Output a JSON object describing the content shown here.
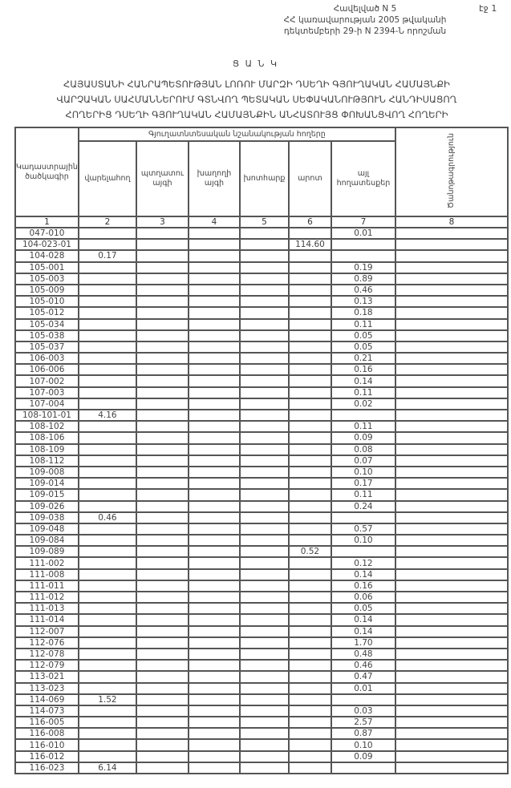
{
  "page_label": "էջ 1",
  "annex": {
    "line1": "Հավելված N 5",
    "line2": "ՀՀ կառավարության 2005 թվականի",
    "line3": "դեկտեմբերի 29-ի N 2394-Ն որոշման"
  },
  "title": "Ց Ա Ն Կ",
  "subtitle": {
    "line1": "ՀԱՅԱՍՏԱՆԻ ՀԱՆՐԱՊԵՏՈՒԹՅԱՆ ԼՈՌՈՒ ՄԱՐԶԻ ԴՍԵՂԻ ԳՅՈՒՂԱԿԱՆ ՀԱՄԱՅՆՔԻ",
    "line2": "ՎԱՐՉԱԿԱՆ ՍԱՀՄԱՆՆԵՐՈՒՄ ԳՏՆՎՈՂ ՊԵՏԱԿԱՆ ՍԵՓԱԿԱՆՈՒԹՅՈՒՆ ՀԱՆԴԻՍԱՑՈՂ",
    "line3": "ՀՈՂԵՐԻՑ ԴՍԵՂԻ ԳՅՈՒՂԱԿԱՆ ՀԱՄԱՅՆՔԻՆ ԱՆՀԱՏՈՒՅՑ ՓՈԽԱՆՑՎՈՂ ՀՈՂԵՐԻ"
  },
  "table": {
    "group_header": "Գյուղատնտեսական նշանակության հողերը",
    "columns": [
      "Կադաստրային ծածկագիր",
      "վարելահող",
      "պտղատու այգի",
      "խաղողի այգի",
      "խոտհարք",
      "արոտ",
      "այլ հողատեսքեր",
      "Ծանոթագրություն"
    ],
    "column_numbers": [
      "1",
      "2",
      "3",
      "4",
      "5",
      "6",
      "7",
      "8"
    ],
    "rows": [
      [
        "047-010",
        "",
        "",
        "",
        "",
        "",
        "0.01",
        ""
      ],
      [
        "104-023-01",
        "",
        "",
        "",
        "",
        "114.60",
        "",
        ""
      ],
      [
        "104-028",
        "0.17",
        "",
        "",
        "",
        "",
        "",
        ""
      ],
      [
        "105-001",
        "",
        "",
        "",
        "",
        "",
        "0.19",
        ""
      ],
      [
        "105-003",
        "",
        "",
        "",
        "",
        "",
        "0.89",
        ""
      ],
      [
        "105-009",
        "",
        "",
        "",
        "",
        "",
        "0.46",
        ""
      ],
      [
        "105-010",
        "",
        "",
        "",
        "",
        "",
        "0.13",
        ""
      ],
      [
        "105-012",
        "",
        "",
        "",
        "",
        "",
        "0.18",
        ""
      ],
      [
        "105-034",
        "",
        "",
        "",
        "",
        "",
        "0.11",
        ""
      ],
      [
        "105-038",
        "",
        "",
        "",
        "",
        "",
        "0.05",
        ""
      ],
      [
        "105-037",
        "",
        "",
        "",
        "",
        "",
        "0.05",
        ""
      ],
      [
        "106-003",
        "",
        "",
        "",
        "",
        "",
        "0.21",
        ""
      ],
      [
        "106-006",
        "",
        "",
        "",
        "",
        "",
        "0.16",
        ""
      ],
      [
        "107-002",
        "",
        "",
        "",
        "",
        "",
        "0.14",
        ""
      ],
      [
        "107-003",
        "",
        "",
        "",
        "",
        "",
        "0.11",
        ""
      ],
      [
        "107-004",
        "",
        "",
        "",
        "",
        "",
        "0.02",
        ""
      ],
      [
        "108-101-01",
        "4.16",
        "",
        "",
        "",
        "",
        "",
        ""
      ],
      [
        "108-102",
        "",
        "",
        "",
        "",
        "",
        "0.11",
        ""
      ],
      [
        "108-106",
        "",
        "",
        "",
        "",
        "",
        "0.09",
        ""
      ],
      [
        "108-109",
        "",
        "",
        "",
        "",
        "",
        "0.08",
        ""
      ],
      [
        "108-112",
        "",
        "",
        "",
        "",
        "",
        "0.07",
        ""
      ],
      [
        "109-008",
        "",
        "",
        "",
        "",
        "",
        "0.10",
        ""
      ],
      [
        "109-014",
        "",
        "",
        "",
        "",
        "",
        "0.17",
        ""
      ],
      [
        "109-015",
        "",
        "",
        "",
        "",
        "",
        "0.11",
        ""
      ],
      [
        "109-026",
        "",
        "",
        "",
        "",
        "",
        "0.24",
        ""
      ],
      [
        "109-038",
        "0.46",
        "",
        "",
        "",
        "",
        "",
        ""
      ],
      [
        "109-048",
        "",
        "",
        "",
        "",
        "",
        "0.57",
        ""
      ],
      [
        "109-084",
        "",
        "",
        "",
        "",
        "",
        "0.10",
        ""
      ],
      [
        "109-089",
        "",
        "",
        "",
        "",
        "0.52",
        "",
        ""
      ],
      [
        "111-002",
        "",
        "",
        "",
        "",
        "",
        "0.12",
        ""
      ],
      [
        "111-008",
        "",
        "",
        "",
        "",
        "",
        "0.14",
        ""
      ],
      [
        "111-011",
        "",
        "",
        "",
        "",
        "",
        "0.16",
        ""
      ],
      [
        "111-012",
        "",
        "",
        "",
        "",
        "",
        "0.06",
        ""
      ],
      [
        "111-013",
        "",
        "",
        "",
        "",
        "",
        "0.05",
        ""
      ],
      [
        "111-014",
        "",
        "",
        "",
        "",
        "",
        "0.14",
        ""
      ],
      [
        "112-007",
        "",
        "",
        "",
        "",
        "",
        "0.14",
        ""
      ],
      [
        "112-076",
        "",
        "",
        "",
        "",
        "",
        "1.70",
        ""
      ],
      [
        "112-078",
        "",
        "",
        "",
        "",
        "",
        "0.48",
        ""
      ],
      [
        "112-079",
        "",
        "",
        "",
        "",
        "",
        "0.46",
        ""
      ],
      [
        "113-021",
        "",
        "",
        "",
        "",
        "",
        "0.47",
        ""
      ],
      [
        "113-023",
        "",
        "",
        "",
        "",
        "",
        "0.01",
        ""
      ],
      [
        "114-069",
        "1.52",
        "",
        "",
        "",
        "",
        "",
        ""
      ],
      [
        "114-073",
        "",
        "",
        "",
        "",
        "",
        "0.03",
        ""
      ],
      [
        "116-005",
        "",
        "",
        "",
        "",
        "",
        "2.57",
        ""
      ],
      [
        "116-008",
        "",
        "",
        "",
        "",
        "",
        "0.87",
        ""
      ],
      [
        "116-010",
        "",
        "",
        "",
        "",
        "",
        "0.10",
        ""
      ],
      [
        "116-012",
        "",
        "",
        "",
        "",
        "",
        "0.09",
        ""
      ],
      [
        "116-023",
        "6.14",
        "",
        "",
        "",
        "",
        "",
        ""
      ]
    ]
  }
}
